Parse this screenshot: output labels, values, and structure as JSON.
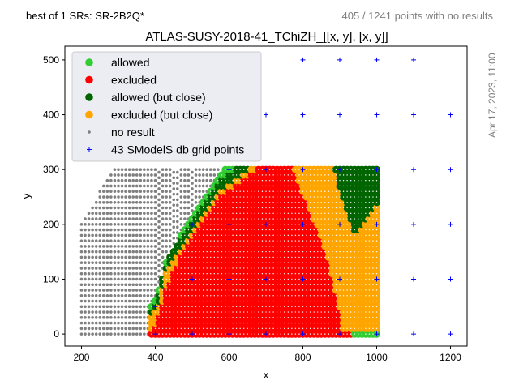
{
  "header": {
    "best_sr": "best of 1 SRs: SR-2B2Q*",
    "no_result_info": "405 / 1241 points with no results",
    "timestamp": "Apr 17, 2023, 11:00"
  },
  "chart_data": {
    "type": "scatter",
    "title": "ATLAS-SUSY-2018-41_TChiZH_[[x, y], [x, y]]",
    "xlabel": "x",
    "ylabel": "y",
    "xlim": [
      155,
      1245
    ],
    "ylim": [
      -22,
      525
    ],
    "xticks": [
      200,
      400,
      600,
      800,
      1000,
      1200
    ],
    "yticks": [
      0,
      100,
      200,
      300,
      400,
      500
    ],
    "grid": false,
    "legend_position": "top-left",
    "colors": {
      "allowed": "#32cd32",
      "excluded": "#ff0000",
      "allowed_close": "#006400",
      "excluded_close": "#ffa500",
      "no_result": "#808080",
      "grid_points": "#0000ff"
    },
    "scan_step": 10,
    "regions": {
      "no_result": [
        [
          200,
          0,
          50,
          200
        ],
        [
          210,
          0,
          50,
          212
        ],
        [
          220,
          0,
          50,
          224
        ],
        [
          230,
          0,
          50,
          236
        ],
        [
          240,
          0,
          50,
          248
        ],
        [
          250,
          0,
          50,
          260
        ],
        [
          260,
          0,
          50,
          272
        ],
        [
          270,
          0,
          50,
          284
        ],
        [
          280,
          0,
          50,
          296
        ],
        [
          290,
          0,
          50,
          300
        ],
        [
          300,
          0,
          50,
          300
        ],
        [
          310,
          0,
          50,
          300
        ],
        [
          320,
          0,
          50,
          300
        ],
        [
          330,
          0,
          50,
          300
        ],
        [
          340,
          0,
          50,
          300
        ],
        [
          350,
          0,
          50,
          300
        ],
        [
          360,
          0,
          50,
          300
        ],
        [
          370,
          0,
          50,
          300
        ],
        [
          380,
          0,
          50,
          300
        ],
        [
          390,
          0,
          50,
          300
        ],
        [
          400,
          50,
          50,
          300
        ],
        [
          410,
          95,
          50,
          300
        ],
        [
          420,
          120,
          50,
          300
        ],
        [
          430,
          150,
          50,
          300
        ],
        [
          440,
          160,
          50,
          300
        ],
        [
          450,
          165,
          50,
          300
        ],
        [
          460,
          175,
          50,
          300
        ],
        [
          470,
          190,
          50,
          300
        ],
        [
          480,
          200,
          50,
          300
        ],
        [
          490,
          210,
          50,
          300
        ],
        [
          500,
          215,
          50,
          300
        ],
        [
          510,
          230,
          50,
          300
        ],
        [
          520,
          240,
          50,
          300
        ],
        [
          530,
          250,
          50,
          300
        ],
        [
          540,
          260,
          50,
          300
        ],
        [
          550,
          270,
          50,
          300
        ],
        [
          560,
          280,
          50,
          300
        ],
        [
          570,
          290,
          50,
          300
        ]
      ],
      "point_profiles": [
        [
          390,
          null,
          5,
          30,
          40,
          50
        ],
        [
          400,
          null,
          15,
          40,
          55,
          60
        ],
        [
          410,
          null,
          30,
          55,
          75,
          80
        ],
        [
          420,
          null,
          50,
          85,
          100,
          105
        ],
        [
          430,
          null,
          80,
          115,
          125,
          130
        ],
        [
          440,
          null,
          95,
          125,
          140,
          145
        ],
        [
          450,
          null,
          110,
          135,
          150,
          155
        ],
        [
          460,
          null,
          125,
          145,
          160,
          165
        ],
        [
          470,
          null,
          140,
          155,
          175,
          180
        ],
        [
          480,
          null,
          155,
          165,
          185,
          190
        ],
        [
          490,
          null,
          165,
          175,
          195,
          200
        ],
        [
          500,
          null,
          175,
          185,
          205,
          210
        ],
        [
          510,
          null,
          185,
          195,
          215,
          220
        ],
        [
          520,
          null,
          195,
          205,
          225,
          230
        ],
        [
          530,
          null,
          205,
          215,
          235,
          240
        ],
        [
          540,
          null,
          215,
          225,
          245,
          250
        ],
        [
          550,
          null,
          225,
          235,
          255,
          260
        ],
        [
          560,
          null,
          235,
          245,
          265,
          270
        ],
        [
          570,
          null,
          245,
          255,
          275,
          280
        ],
        [
          580,
          null,
          250,
          260,
          280,
          290
        ],
        [
          590,
          null,
          255,
          265,
          285,
          300
        ],
        [
          600,
          null,
          260,
          270,
          290,
          300
        ],
        [
          610,
          null,
          265,
          275,
          295,
          300
        ],
        [
          620,
          null,
          270,
          280,
          300,
          300
        ],
        [
          630,
          null,
          275,
          285,
          300,
          300
        ],
        [
          640,
          null,
          280,
          290,
          300,
          300
        ],
        [
          650,
          null,
          285,
          295,
          300,
          300
        ],
        [
          660,
          null,
          290,
          300,
          300,
          300
        ],
        [
          670,
          null,
          295,
          300,
          300,
          300
        ],
        [
          680,
          null,
          300,
          300,
          300,
          300
        ],
        [
          690,
          null,
          300,
          300,
          300,
          300
        ],
        [
          700,
          null,
          300,
          300,
          300,
          300
        ],
        [
          710,
          null,
          300,
          300,
          300,
          300
        ],
        [
          720,
          null,
          300,
          300,
          300,
          300
        ],
        [
          730,
          null,
          300,
          300,
          300,
          300
        ],
        [
          740,
          null,
          300,
          300,
          300,
          300
        ],
        [
          750,
          null,
          300,
          300,
          300,
          300
        ],
        [
          760,
          null,
          300,
          300,
          300,
          300
        ],
        [
          770,
          null,
          300,
          300,
          300,
          300
        ],
        [
          780,
          null,
          290,
          300,
          300,
          300
        ],
        [
          790,
          null,
          270,
          300,
          300,
          300
        ],
        [
          800,
          null,
          255,
          300,
          300,
          300
        ],
        [
          810,
          null,
          240,
          300,
          300,
          300
        ],
        [
          820,
          null,
          225,
          300,
          300,
          300
        ],
        [
          830,
          null,
          205,
          300,
          300,
          300
        ],
        [
          840,
          null,
          190,
          300,
          300,
          300
        ],
        [
          850,
          null,
          170,
          300,
          300,
          300
        ],
        [
          860,
          null,
          150,
          300,
          300,
          300
        ],
        [
          870,
          null,
          130,
          300,
          300,
          300
        ],
        [
          880,
          null,
          100,
          300,
          300,
          300
        ],
        [
          890,
          null,
          70,
          290,
          300,
          300
        ],
        [
          900,
          null,
          40,
          265,
          300,
          300
        ],
        [
          910,
          null,
          5,
          240,
          300,
          300
        ],
        [
          920,
          null,
          0,
          225,
          300,
          300
        ],
        [
          930,
          null,
          0,
          200,
          300,
          300
        ],
        [
          940,
          0,
          0,
          180,
          300,
          300
        ],
        [
          950,
          0,
          0,
          180,
          300,
          300
        ],
        [
          960,
          0,
          0,
          190,
          300,
          300
        ],
        [
          970,
          0,
          0,
          200,
          300,
          300
        ],
        [
          980,
          0,
          0,
          210,
          300,
          300
        ],
        [
          990,
          0,
          0,
          220,
          300,
          300
        ],
        [
          1000,
          0,
          0,
          230,
          300,
          300
        ]
      ],
      "point_classes_note": "profile = [x, allowed_below_y, excluded_up_to_y, excluded_close_up_to_y, allowed_close_up_to_y, allowed_up_to_y]"
    },
    "grid_points": [
      [
        400,
        0
      ],
      [
        400,
        50
      ],
      [
        500,
        0
      ],
      [
        500,
        100
      ],
      [
        500,
        200
      ],
      [
        600,
        0
      ],
      [
        600,
        100
      ],
      [
        600,
        200
      ],
      [
        600,
        300
      ],
      [
        700,
        0
      ],
      [
        700,
        100
      ],
      [
        700,
        200
      ],
      [
        700,
        300
      ],
      [
        700,
        400
      ],
      [
        800,
        0
      ],
      [
        800,
        100
      ],
      [
        800,
        200
      ],
      [
        800,
        300
      ],
      [
        800,
        400
      ],
      [
        800,
        500
      ],
      [
        900,
        0
      ],
      [
        900,
        100
      ],
      [
        900,
        200
      ],
      [
        900,
        300
      ],
      [
        900,
        400
      ],
      [
        900,
        500
      ],
      [
        1000,
        0
      ],
      [
        1000,
        100
      ],
      [
        1000,
        200
      ],
      [
        1000,
        300
      ],
      [
        1000,
        400
      ],
      [
        1000,
        500
      ],
      [
        1100,
        0
      ],
      [
        1100,
        100
      ],
      [
        1100,
        200
      ],
      [
        1100,
        300
      ],
      [
        1100,
        400
      ],
      [
        1100,
        500
      ],
      [
        1200,
        0
      ],
      [
        1200,
        100
      ],
      [
        1200,
        200
      ],
      [
        1200,
        300
      ],
      [
        1200,
        400
      ]
    ],
    "legend": [
      {
        "label": "allowed",
        "marker": "dot",
        "color": "#32cd32"
      },
      {
        "label": "excluded",
        "marker": "dot",
        "color": "#ff0000"
      },
      {
        "label": "allowed (but close)",
        "marker": "dot",
        "color": "#006400"
      },
      {
        "label": "excluded (but close)",
        "marker": "dot",
        "color": "#ffa500"
      },
      {
        "label": "no result",
        "marker": "small-dot",
        "color": "#808080"
      },
      {
        "label": "43 SModelS db grid points",
        "marker": "plus",
        "color": "#0000ff"
      }
    ]
  }
}
